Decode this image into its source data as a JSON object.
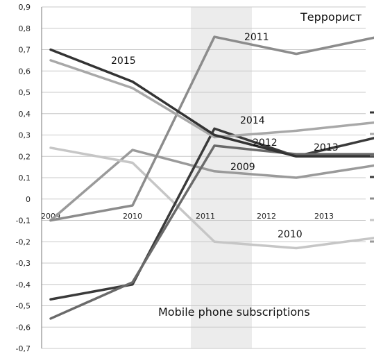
{
  "chart_data": {
    "type": "line",
    "x": [
      "2009",
      "2010",
      "2011",
      "2012",
      "2013"
    ],
    "ylim": [
      -0.7,
      0.9
    ],
    "y_ticks": [
      "0,9",
      "0,8",
      "0,7",
      "0,6",
      "0,5",
      "0,4",
      "0,3",
      "0,2",
      "0,1",
      "0",
      "-0,1",
      "-0,2",
      "-0,3",
      "-0,4",
      "-0,5",
      "-0,6",
      "-0,7"
    ],
    "highlight_category": "2011",
    "grid": true,
    "annotations": {
      "top_right": "Террорист",
      "bottom": "Mobile phone subscriptions"
    },
    "series": [
      {
        "name": "2009",
        "values": [
          -0.1,
          0.23,
          0.13,
          0.1,
          0.16
        ],
        "color": "#9a9a9a"
      },
      {
        "name": "2010",
        "values": [
          0.24,
          0.17,
          -0.2,
          -0.23,
          -0.18
        ],
        "color": "#c6c6c6"
      },
      {
        "name": "2011",
        "values": [
          -0.1,
          -0.03,
          0.76,
          0.68,
          0.76
        ],
        "color": "#8c8c8c"
      },
      {
        "name": "2012",
        "values": [
          -0.47,
          -0.4,
          0.33,
          0.2,
          0.29
        ],
        "color": "#3a3a3a"
      },
      {
        "name": "2013",
        "values": [
          -0.56,
          -0.39,
          0.25,
          0.21,
          0.21
        ],
        "color": "#6a6a6a"
      },
      {
        "name": "2014",
        "values": [
          0.65,
          0.52,
          0.29,
          0.32,
          0.36
        ],
        "color": "#a8a8a8"
      },
      {
        "name": "2015",
        "values": [
          0.7,
          0.55,
          0.3,
          0.2,
          0.2
        ],
        "color": "#333333"
      }
    ],
    "right_legend_marks": [
      {
        "dash": "#333333"
      },
      {
        "dash": "#a8a8a8"
      },
      {
        "dash": "#6a6a6a"
      },
      {
        "dash": "#3a3a3a"
      },
      {
        "dash": "#8c8c8c"
      },
      {
        "dash": "#c6c6c6"
      },
      {
        "dash": "#9a9a9a"
      }
    ]
  }
}
